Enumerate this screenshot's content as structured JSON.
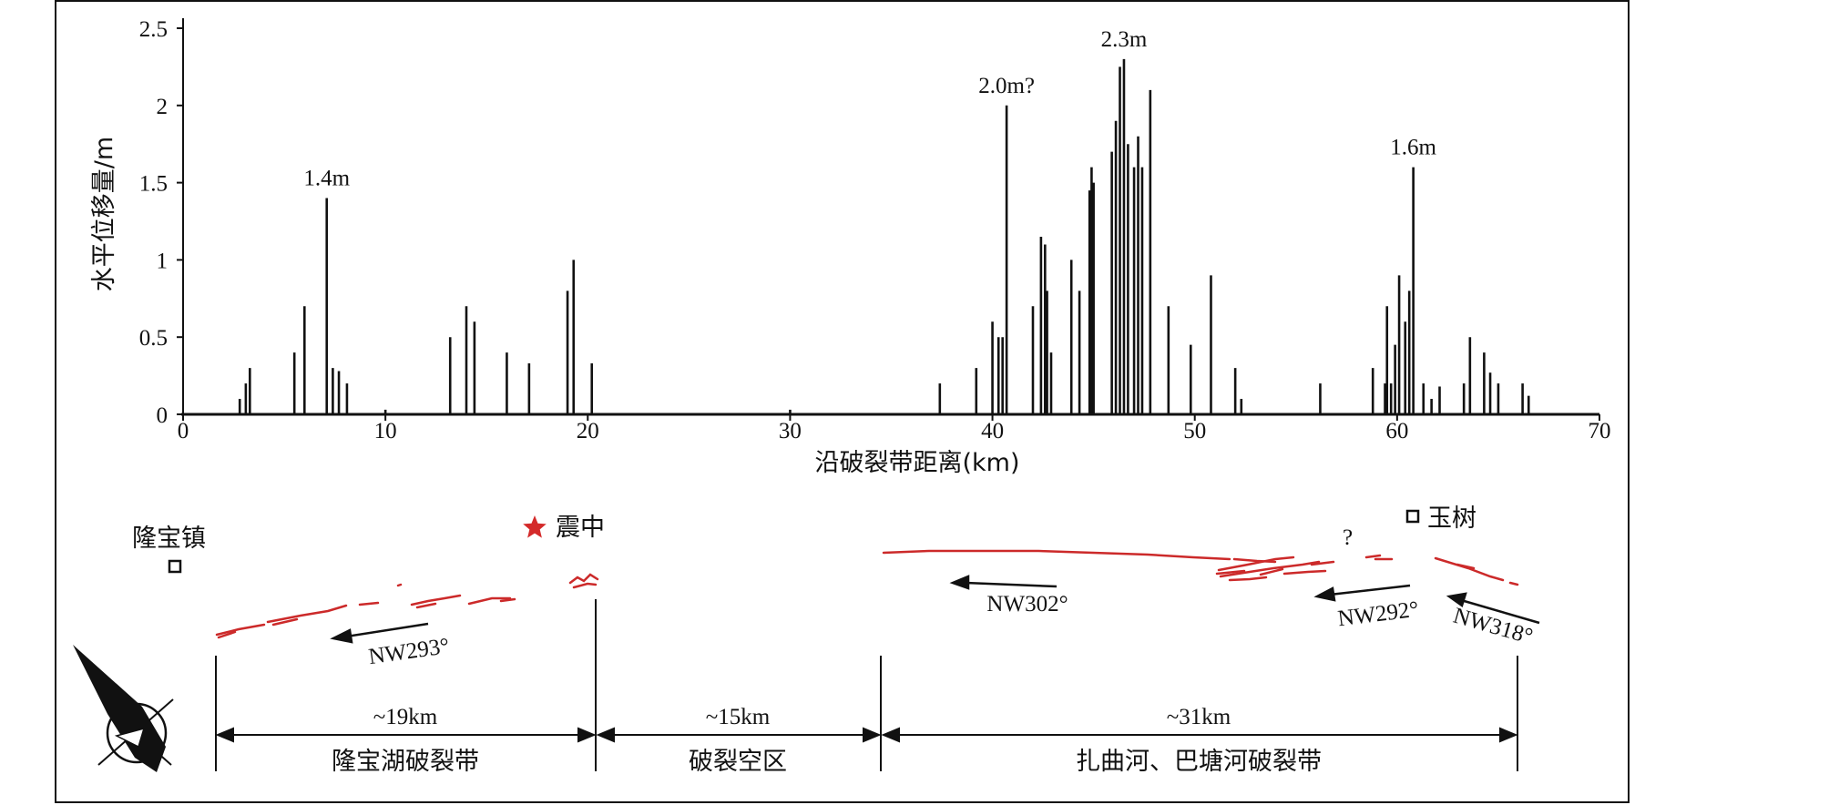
{
  "colors": {
    "ink": "#111111",
    "rupture_red": "#cc2a2a",
    "star_red": "#d42a2a"
  },
  "chart_data": {
    "type": "bar",
    "xlabel": "沿破裂带距离(km)",
    "ylabel": "水平位移量/m",
    "xlim": [
      0,
      70
    ],
    "ylim": [
      0,
      2.5
    ],
    "x_ticks": [
      "0",
      "10",
      "20",
      "30",
      "40",
      "50",
      "60",
      "70"
    ],
    "y_ticks": [
      "0",
      "0.5",
      "1",
      "1.5",
      "2",
      "2.5"
    ],
    "grid": false,
    "x": [
      2.8,
      3.1,
      3.3,
      5.5,
      6.0,
      7.1,
      7.4,
      7.7,
      8.1,
      10.0,
      13.2,
      14.0,
      14.4,
      16.0,
      17.1,
      19.0,
      19.3,
      20.2,
      30.0,
      37.4,
      39.2,
      40.0,
      40.3,
      40.5,
      40.7,
      42.0,
      42.4,
      42.6,
      42.7,
      42.9,
      43.9,
      44.3,
      44.8,
      44.9,
      45.0,
      45.9,
      46.1,
      46.3,
      46.5,
      46.7,
      47.0,
      47.2,
      47.4,
      47.8,
      48.7,
      49.8,
      50.8,
      52.0,
      52.3,
      56.2,
      58.8,
      59.4,
      59.5,
      59.7,
      59.9,
      60.1,
      60.4,
      60.6,
      60.8,
      61.3,
      61.7,
      62.1,
      63.3,
      63.6,
      64.3,
      64.6,
      65.0,
      66.2,
      66.5
    ],
    "values": [
      0.1,
      0.2,
      0.3,
      0.4,
      0.7,
      1.4,
      0.3,
      0.28,
      0.2,
      0.03,
      0.5,
      0.7,
      0.6,
      0.4,
      0.33,
      0.8,
      1.0,
      0.33,
      0.03,
      0.2,
      0.3,
      0.6,
      0.5,
      0.5,
      2.0,
      0.7,
      1.15,
      1.1,
      0.8,
      0.4,
      1.0,
      0.8,
      1.45,
      1.6,
      1.5,
      1.7,
      1.9,
      2.25,
      2.3,
      1.75,
      1.6,
      1.8,
      1.6,
      2.1,
      0.7,
      0.45,
      0.9,
      0.3,
      0.1,
      0.2,
      0.3,
      0.2,
      0.7,
      0.2,
      0.45,
      0.9,
      0.6,
      0.8,
      1.6,
      0.2,
      0.1,
      0.18,
      0.2,
      0.5,
      0.4,
      0.27,
      0.2,
      0.2,
      0.12
    ],
    "annotations": [
      {
        "x": 7.1,
        "value": 1.4,
        "text": "1.4m"
      },
      {
        "x": 40.7,
        "value": 2.0,
        "text": "2.0m?"
      },
      {
        "x": 46.5,
        "value": 2.3,
        "text": "2.3m"
      },
      {
        "x": 60.8,
        "value": 1.6,
        "text": "1.6m"
      }
    ]
  },
  "map": {
    "places": [
      {
        "key": "longbao_town",
        "text": "隆宝镇"
      },
      {
        "key": "epicenter",
        "text": "震中"
      },
      {
        "key": "yushu",
        "text": "玉树"
      }
    ],
    "question_mark": "?",
    "directions": [
      "NW293°",
      "NW302°",
      "NW292°",
      "NW318°"
    ],
    "segments": [
      {
        "length": "~19km",
        "name": "隆宝湖破裂带"
      },
      {
        "length": "~15km",
        "name": "破裂空区"
      },
      {
        "length": "~31km",
        "name": "扎曲河、巴塘河破裂带"
      }
    ],
    "compass_icon": "north-arrow-icon"
  }
}
